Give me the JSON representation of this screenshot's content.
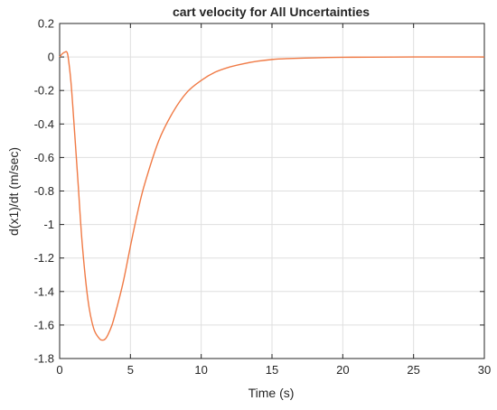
{
  "chart_data": {
    "type": "line",
    "title": "cart velocity for All Uncertainties",
    "xlabel": "Time (s)",
    "ylabel": "d(x1)/dt (m/sec)",
    "xlim": [
      0,
      30
    ],
    "ylim": [
      -1.8,
      0.2
    ],
    "xticks": [
      0,
      5,
      10,
      15,
      20,
      25,
      30
    ],
    "xtick_labels": [
      "0",
      "5",
      "10",
      "15",
      "20",
      "25",
      "30"
    ],
    "yticks": [
      0.2,
      0,
      -0.2,
      -0.4,
      -0.6,
      -0.8,
      -1,
      -1.2,
      -1.4,
      -1.6,
      -1.8
    ],
    "ytick_labels": [
      "0.2",
      "0",
      "-0.2",
      "-0.4",
      "-0.6",
      "-0.8",
      "-1",
      "-1.2",
      "-1.4",
      "-1.6",
      "-1.8"
    ],
    "grid": true,
    "series": [
      {
        "color": "#f07a45",
        "x": [
          0,
          0.2,
          0.4,
          0.5,
          0.6,
          0.8,
          1.0,
          1.3,
          1.6,
          2.0,
          2.4,
          2.8,
          3.0,
          3.2,
          3.4,
          3.7,
          4.0,
          4.5,
          5.0,
          5.5,
          6.0,
          7.0,
          8.0,
          9.0,
          10.0,
          11.0,
          12.0,
          13.0,
          14.0,
          15.0,
          16.0,
          18.0,
          20.0,
          22.0,
          25.0,
          30.0
        ],
        "y": [
          0,
          0.02,
          0.03,
          0.03,
          0.0,
          -0.15,
          -0.38,
          -0.75,
          -1.12,
          -1.45,
          -1.62,
          -1.68,
          -1.69,
          -1.685,
          -1.66,
          -1.6,
          -1.51,
          -1.34,
          -1.13,
          -0.93,
          -0.76,
          -0.5,
          -0.33,
          -0.21,
          -0.14,
          -0.09,
          -0.06,
          -0.04,
          -0.025,
          -0.015,
          -0.01,
          -0.005,
          -0.002,
          -0.001,
          0,
          0
        ]
      }
    ]
  }
}
